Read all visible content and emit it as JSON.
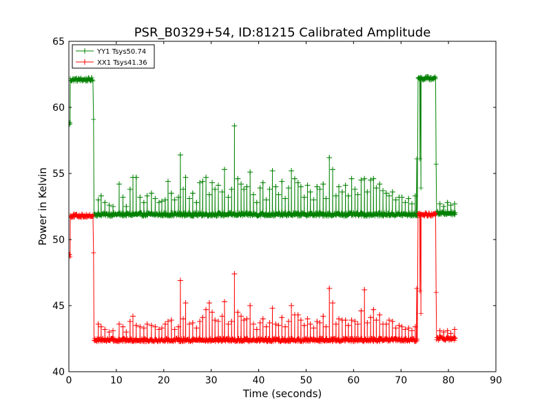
{
  "chart_data": {
    "type": "line",
    "title": "PSR_B0329+54, ID:81215 Calibrated Amplitude",
    "xlabel": "Time (seconds)",
    "ylabel": "Power in Kelvin",
    "xlim": [
      0,
      90
    ],
    "ylim": [
      40,
      65
    ],
    "xticks": [
      0,
      10,
      20,
      30,
      40,
      50,
      60,
      70,
      80,
      90
    ],
    "yticks": [
      40,
      45,
      50,
      55,
      60,
      65
    ],
    "legend_position": "top-left",
    "grid": false,
    "series": [
      {
        "name": "YY1 Tsys50.74",
        "color": "#008000",
        "marker": "+",
        "x_range": [
          0,
          81.5
        ],
        "baseline_segments": [
          {
            "x": [
              0,
              0.3
            ],
            "y": 58.8
          },
          {
            "x": [
              0.3,
              5.1
            ],
            "y": 62.1
          },
          {
            "x": [
              5.3,
              73.5
            ],
            "y": 51.9
          },
          {
            "x": [
              73.6,
              77.3
            ],
            "y": 62.2
          },
          {
            "x": [
              77.5,
              81.5
            ],
            "y": 52.0
          }
        ],
        "transition_points": [
          {
            "x": 5.2,
            "y": 59.1
          },
          {
            "x": 73.3,
            "y": 56.1
          },
          {
            "x": 74.0,
            "y": 56.1
          },
          {
            "x": 77.4,
            "y": 55.7
          }
        ],
        "dip_at": {
          "x": 74.2,
          "y": 53.9
        },
        "spikes": [
          {
            "x": 6.2,
            "y": 53.0
          },
          {
            "x": 6.8,
            "y": 53.3
          },
          {
            "x": 7.6,
            "y": 52.8
          },
          {
            "x": 8.5,
            "y": 52.6
          },
          {
            "x": 9.3,
            "y": 52.5
          },
          {
            "x": 10.6,
            "y": 54.2
          },
          {
            "x": 11.4,
            "y": 53.2
          },
          {
            "x": 12.1,
            "y": 52.5
          },
          {
            "x": 12.9,
            "y": 53.8
          },
          {
            "x": 13.5,
            "y": 54.7
          },
          {
            "x": 14.2,
            "y": 54.7
          },
          {
            "x": 15.0,
            "y": 53.2
          },
          {
            "x": 15.8,
            "y": 52.8
          },
          {
            "x": 16.5,
            "y": 53.3
          },
          {
            "x": 17.4,
            "y": 53.5
          },
          {
            "x": 18.2,
            "y": 53.1
          },
          {
            "x": 19.0,
            "y": 52.8
          },
          {
            "x": 19.6,
            "y": 52.9
          },
          {
            "x": 20.3,
            "y": 53.0
          },
          {
            "x": 20.9,
            "y": 54.4
          },
          {
            "x": 21.6,
            "y": 53.5
          },
          {
            "x": 22.3,
            "y": 53.0
          },
          {
            "x": 23.1,
            "y": 53.2
          },
          {
            "x": 23.5,
            "y": 56.4
          },
          {
            "x": 24.1,
            "y": 53.8
          },
          {
            "x": 24.6,
            "y": 54.7
          },
          {
            "x": 25.4,
            "y": 53.1
          },
          {
            "x": 26.1,
            "y": 53.5
          },
          {
            "x": 26.9,
            "y": 52.8
          },
          {
            "x": 27.6,
            "y": 54.3
          },
          {
            "x": 28.2,
            "y": 54.4
          },
          {
            "x": 28.9,
            "y": 54.7
          },
          {
            "x": 29.6,
            "y": 53.4
          },
          {
            "x": 30.2,
            "y": 54.3
          },
          {
            "x": 30.8,
            "y": 53.8
          },
          {
            "x": 31.5,
            "y": 54.1
          },
          {
            "x": 32.3,
            "y": 53.6
          },
          {
            "x": 32.8,
            "y": 55.3
          },
          {
            "x": 33.6,
            "y": 53.2
          },
          {
            "x": 34.3,
            "y": 53.8
          },
          {
            "x": 34.9,
            "y": 58.6
          },
          {
            "x": 35.6,
            "y": 54.6
          },
          {
            "x": 36.3,
            "y": 54.2
          },
          {
            "x": 36.9,
            "y": 53.8
          },
          {
            "x": 37.5,
            "y": 54.0
          },
          {
            "x": 38.2,
            "y": 55.1
          },
          {
            "x": 38.9,
            "y": 53.4
          },
          {
            "x": 39.6,
            "y": 52.8
          },
          {
            "x": 40.3,
            "y": 53.9
          },
          {
            "x": 40.9,
            "y": 54.3
          },
          {
            "x": 41.6,
            "y": 53.0
          },
          {
            "x": 42.3,
            "y": 53.8
          },
          {
            "x": 42.9,
            "y": 55.2
          },
          {
            "x": 43.6,
            "y": 54.0
          },
          {
            "x": 44.2,
            "y": 53.4
          },
          {
            "x": 44.9,
            "y": 54.4
          },
          {
            "x": 45.6,
            "y": 53.1
          },
          {
            "x": 46.3,
            "y": 53.9
          },
          {
            "x": 46.9,
            "y": 55.2
          },
          {
            "x": 47.6,
            "y": 54.6
          },
          {
            "x": 48.3,
            "y": 54.3
          },
          {
            "x": 48.9,
            "y": 54.0
          },
          {
            "x": 49.6,
            "y": 53.2
          },
          {
            "x": 50.3,
            "y": 54.1
          },
          {
            "x": 50.9,
            "y": 53.6
          },
          {
            "x": 51.6,
            "y": 53.0
          },
          {
            "x": 52.3,
            "y": 54.0
          },
          {
            "x": 52.9,
            "y": 53.8
          },
          {
            "x": 53.6,
            "y": 54.2
          },
          {
            "x": 54.2,
            "y": 53.1
          },
          {
            "x": 54.9,
            "y": 56.2
          },
          {
            "x": 55.6,
            "y": 55.3
          },
          {
            "x": 56.3,
            "y": 53.3
          },
          {
            "x": 56.9,
            "y": 54.0
          },
          {
            "x": 57.6,
            "y": 53.6
          },
          {
            "x": 58.3,
            "y": 54.1
          },
          {
            "x": 58.9,
            "y": 53.3
          },
          {
            "x": 59.6,
            "y": 54.6
          },
          {
            "x": 60.3,
            "y": 53.8
          },
          {
            "x": 60.9,
            "y": 53.4
          },
          {
            "x": 61.6,
            "y": 54.5
          },
          {
            "x": 62.3,
            "y": 54.6
          },
          {
            "x": 62.9,
            "y": 53.6
          },
          {
            "x": 63.6,
            "y": 54.5
          },
          {
            "x": 64.2,
            "y": 54.6
          },
          {
            "x": 64.8,
            "y": 53.9
          },
          {
            "x": 65.5,
            "y": 54.2
          },
          {
            "x": 66.2,
            "y": 53.7
          },
          {
            "x": 66.9,
            "y": 53.5
          },
          {
            "x": 67.5,
            "y": 53.3
          },
          {
            "x": 68.2,
            "y": 53.6
          },
          {
            "x": 68.9,
            "y": 53.0
          },
          {
            "x": 69.6,
            "y": 53.2
          },
          {
            "x": 70.2,
            "y": 53.2
          },
          {
            "x": 70.9,
            "y": 52.8
          },
          {
            "x": 71.6,
            "y": 53.1
          },
          {
            "x": 72.3,
            "y": 52.7
          },
          {
            "x": 73.0,
            "y": 53.3
          },
          {
            "x": 78.2,
            "y": 52.7
          },
          {
            "x": 79.0,
            "y": 52.5
          },
          {
            "x": 79.8,
            "y": 52.8
          },
          {
            "x": 80.5,
            "y": 52.6
          },
          {
            "x": 81.3,
            "y": 52.7
          }
        ]
      },
      {
        "name": "XX1 Tsys41.36",
        "color": "#ff0000",
        "marker": "+",
        "x_range": [
          0,
          81.5
        ],
        "baseline_segments": [
          {
            "x": [
              0,
              0.3
            ],
            "y": 48.8
          },
          {
            "x": [
              0.3,
              5.1
            ],
            "y": 51.8
          },
          {
            "x": [
              5.3,
              73.5
            ],
            "y": 42.4
          },
          {
            "x": [
              73.6,
              77.3
            ],
            "y": 51.9
          },
          {
            "x": [
              77.5,
              81.5
            ],
            "y": 42.5
          }
        ],
        "transition_points": [
          {
            "x": 5.2,
            "y": 49.0
          },
          {
            "x": 73.3,
            "y": 46.3
          },
          {
            "x": 74.0,
            "y": 46.1
          },
          {
            "x": 77.4,
            "y": 46.0
          }
        ],
        "dip_at": {
          "x": 74.2,
          "y": 44.4
        },
        "spikes": [
          {
            "x": 6.2,
            "y": 43.6
          },
          {
            "x": 6.8,
            "y": 43.4
          },
          {
            "x": 7.6,
            "y": 43.2
          },
          {
            "x": 8.5,
            "y": 43.0
          },
          {
            "x": 9.3,
            "y": 43.1
          },
          {
            "x": 10.6,
            "y": 43.6
          },
          {
            "x": 11.4,
            "y": 43.4
          },
          {
            "x": 12.1,
            "y": 43.0
          },
          {
            "x": 12.9,
            "y": 43.8
          },
          {
            "x": 13.5,
            "y": 44.2
          },
          {
            "x": 14.2,
            "y": 43.5
          },
          {
            "x": 15.0,
            "y": 43.4
          },
          {
            "x": 15.8,
            "y": 43.3
          },
          {
            "x": 16.5,
            "y": 43.6
          },
          {
            "x": 17.4,
            "y": 43.5
          },
          {
            "x": 18.2,
            "y": 43.4
          },
          {
            "x": 19.0,
            "y": 43.2
          },
          {
            "x": 19.6,
            "y": 43.3
          },
          {
            "x": 20.3,
            "y": 43.6
          },
          {
            "x": 20.9,
            "y": 43.8
          },
          {
            "x": 21.6,
            "y": 43.9
          },
          {
            "x": 22.3,
            "y": 43.2
          },
          {
            "x": 23.1,
            "y": 43.4
          },
          {
            "x": 23.5,
            "y": 46.9
          },
          {
            "x": 24.1,
            "y": 44.0
          },
          {
            "x": 24.6,
            "y": 45.2
          },
          {
            "x": 25.4,
            "y": 43.6
          },
          {
            "x": 26.1,
            "y": 43.7
          },
          {
            "x": 26.9,
            "y": 43.3
          },
          {
            "x": 27.6,
            "y": 43.8
          },
          {
            "x": 28.2,
            "y": 44.1
          },
          {
            "x": 28.9,
            "y": 44.7
          },
          {
            "x": 29.6,
            "y": 45.2
          },
          {
            "x": 30.2,
            "y": 44.5
          },
          {
            "x": 30.8,
            "y": 43.9
          },
          {
            "x": 31.5,
            "y": 43.8
          },
          {
            "x": 32.3,
            "y": 44.2
          },
          {
            "x": 32.8,
            "y": 45.3
          },
          {
            "x": 33.6,
            "y": 43.6
          },
          {
            "x": 34.3,
            "y": 43.8
          },
          {
            "x": 34.9,
            "y": 47.4
          },
          {
            "x": 35.6,
            "y": 44.5
          },
          {
            "x": 36.3,
            "y": 44.2
          },
          {
            "x": 36.9,
            "y": 43.9
          },
          {
            "x": 37.5,
            "y": 44.0
          },
          {
            "x": 38.2,
            "y": 45.0
          },
          {
            "x": 38.9,
            "y": 43.6
          },
          {
            "x": 39.6,
            "y": 43.2
          },
          {
            "x": 40.3,
            "y": 43.7
          },
          {
            "x": 40.9,
            "y": 44.0
          },
          {
            "x": 41.6,
            "y": 43.4
          },
          {
            "x": 42.3,
            "y": 43.7
          },
          {
            "x": 42.9,
            "y": 44.8
          },
          {
            "x": 43.6,
            "y": 43.6
          },
          {
            "x": 44.2,
            "y": 43.5
          },
          {
            "x": 44.9,
            "y": 44.1
          },
          {
            "x": 45.6,
            "y": 43.4
          },
          {
            "x": 46.3,
            "y": 43.8
          },
          {
            "x": 46.9,
            "y": 45.0
          },
          {
            "x": 47.6,
            "y": 44.3
          },
          {
            "x": 48.3,
            "y": 44.3
          },
          {
            "x": 48.9,
            "y": 43.9
          },
          {
            "x": 49.6,
            "y": 43.5
          },
          {
            "x": 50.3,
            "y": 44.0
          },
          {
            "x": 50.9,
            "y": 43.6
          },
          {
            "x": 51.6,
            "y": 43.3
          },
          {
            "x": 52.3,
            "y": 43.8
          },
          {
            "x": 52.9,
            "y": 43.7
          },
          {
            "x": 53.6,
            "y": 44.2
          },
          {
            "x": 54.2,
            "y": 43.4
          },
          {
            "x": 54.9,
            "y": 46.3
          },
          {
            "x": 55.6,
            "y": 45.2
          },
          {
            "x": 56.3,
            "y": 43.6
          },
          {
            "x": 56.9,
            "y": 44.0
          },
          {
            "x": 57.6,
            "y": 43.9
          },
          {
            "x": 58.3,
            "y": 43.9
          },
          {
            "x": 58.9,
            "y": 43.5
          },
          {
            "x": 59.6,
            "y": 43.9
          },
          {
            "x": 60.3,
            "y": 43.8
          },
          {
            "x": 60.9,
            "y": 43.6
          },
          {
            "x": 61.6,
            "y": 44.6
          },
          {
            "x": 62.3,
            "y": 46.2
          },
          {
            "x": 62.9,
            "y": 43.7
          },
          {
            "x": 63.6,
            "y": 44.1
          },
          {
            "x": 64.2,
            "y": 44.7
          },
          {
            "x": 64.8,
            "y": 43.9
          },
          {
            "x": 65.5,
            "y": 44.3
          },
          {
            "x": 66.2,
            "y": 43.6
          },
          {
            "x": 66.9,
            "y": 43.6
          },
          {
            "x": 67.5,
            "y": 43.9
          },
          {
            "x": 68.2,
            "y": 43.8
          },
          {
            "x": 68.9,
            "y": 43.3
          },
          {
            "x": 69.6,
            "y": 43.5
          },
          {
            "x": 70.2,
            "y": 43.4
          },
          {
            "x": 70.9,
            "y": 43.2
          },
          {
            "x": 71.6,
            "y": 43.3
          },
          {
            "x": 72.3,
            "y": 43.1
          },
          {
            "x": 73.0,
            "y": 43.4
          },
          {
            "x": 78.2,
            "y": 43.1
          },
          {
            "x": 79.0,
            "y": 43.0
          },
          {
            "x": 79.8,
            "y": 43.1
          },
          {
            "x": 80.5,
            "y": 42.9
          },
          {
            "x": 81.3,
            "y": 43.2
          }
        ]
      }
    ]
  }
}
